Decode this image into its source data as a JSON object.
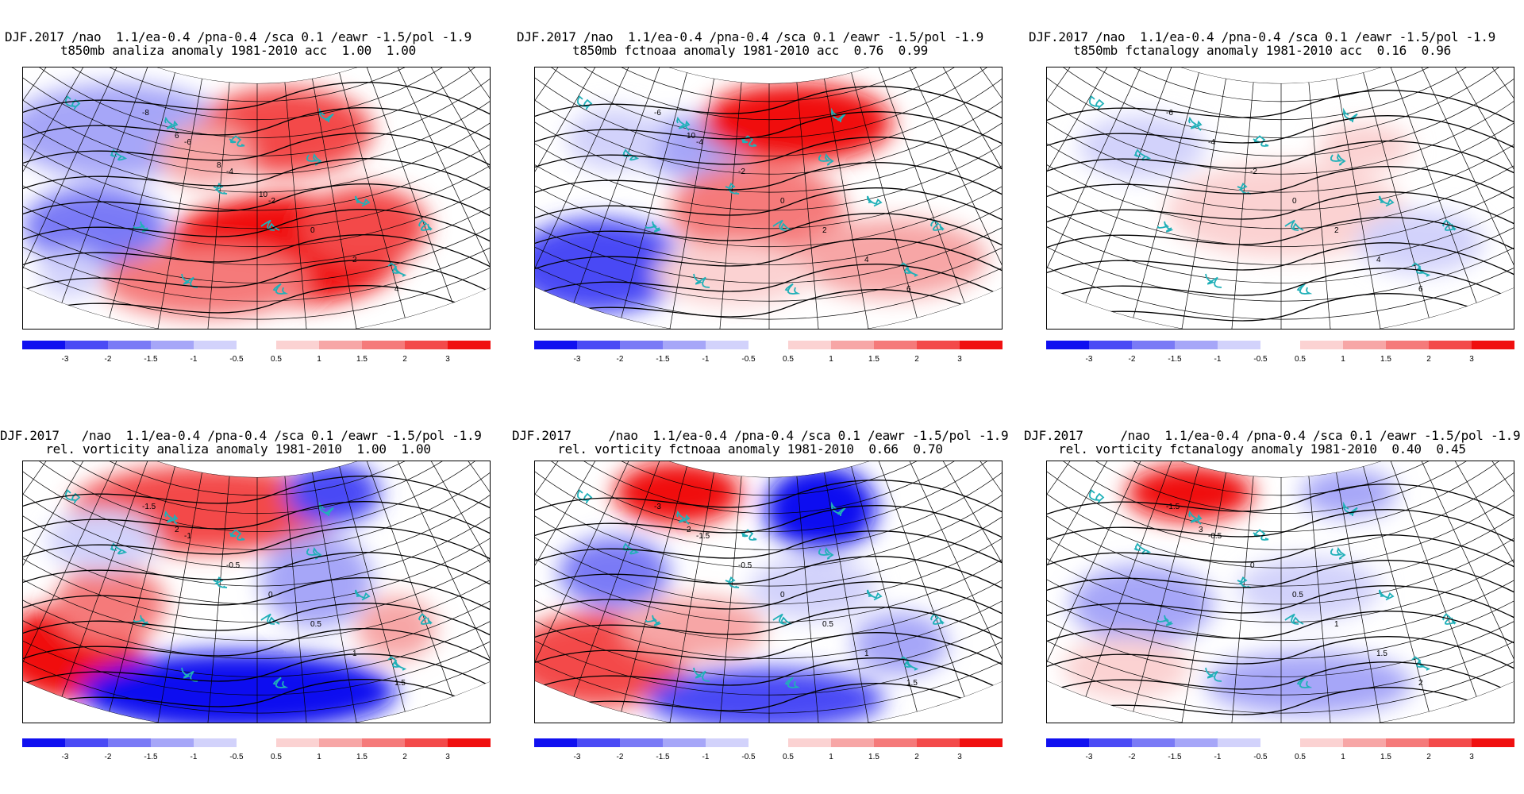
{
  "colorbar": {
    "neg_labels": [
      "-3",
      "-2",
      "-1.5",
      "-1",
      "-0.5"
    ],
    "pos_labels": [
      "0.5",
      "1",
      "1.5",
      "2",
      "3"
    ],
    "neg_colors": [
      "#1010f0",
      "#4a4af5",
      "#7a7af6",
      "#a6a6f8",
      "#d2d2fb"
    ],
    "pos_colors": [
      "#fbd2d2",
      "#f7a6a6",
      "#f57a7a",
      "#f34a4a",
      "#f01010"
    ]
  },
  "panels": [
    {
      "title1": "DJF.2017 /nao  1.1/ea-0.4 /pna-0.4 /sca 0.1 /eawr -1.5/pol -1.9",
      "title2": "t850mb analiza anomaly 1981-2010 acc  1.00  1.00",
      "contour_labels": [
        "-8",
        "-6",
        "-4",
        "-2",
        "0",
        "2",
        "4",
        "6",
        "8",
        "10"
      ]
    },
    {
      "title1": "DJF.2017 /nao  1.1/ea-0.4 /pna-0.4 /sca 0.1 /eawr -1.5/pol -1.9",
      "title2": "t850mb fctnoaa anomaly 1981-2010 acc  0.76  0.99",
      "contour_labels": [
        "-6",
        "-4",
        "-2",
        "0",
        "2",
        "4",
        "6",
        "10"
      ]
    },
    {
      "title1": "DJF.2017 /nao  1.1/ea-0.4 /pna-0.4 /sca 0.1 /eawr -1.5/pol -1.9",
      "title2": "t850mb fctanalogy anomaly 1981-2010 acc  0.16  0.96",
      "contour_labels": [
        "-6",
        "-4",
        "-2",
        "0",
        "2",
        "4",
        "6"
      ]
    },
    {
      "title1": "DJF.2017   /nao  1.1/ea-0.4 /pna-0.4 /sca 0.1 /eawr -1.5/pol -1.9",
      "title2": "rel. vorticity analiza anomaly 1981-2010  1.00  1.00",
      "contour_labels": [
        "-1.5",
        "-1",
        "-0.5",
        "0",
        "0.5",
        "1",
        "1.5",
        "2"
      ]
    },
    {
      "title1": "DJF.2017     /nao  1.1/ea-0.4 /pna-0.4 /sca 0.1 /eawr -1.5/pol -1.9",
      "title2": "rel. vorticity fctnoaa anomaly 1981-2010  0.66  0.70",
      "contour_labels": [
        "-3",
        "-1.5",
        "-0.5",
        "0",
        "0.5",
        "1",
        "1.5",
        "2"
      ]
    },
    {
      "title1": "DJF.2017     /nao  1.1/ea-0.4 /pna-0.4 /sca 0.1 /eawr -1.5/pol -1.9",
      "title2": "rel. vorticity fctanalogy anomaly 1981-2010  0.40  0.45",
      "contour_labels": [
        "-1.5",
        "-0.5",
        "0",
        "0.5",
        "1",
        "1.5",
        "2",
        "3"
      ]
    }
  ],
  "blobs": [
    [
      {
        "c": "#f01010",
        "v": 3
      },
      {
        "c": "#f34a4a",
        "v": 2
      },
      {
        "c": "#f57a7a",
        "v": 1.5
      },
      {
        "c": "#7a7af6",
        "v": -1.5
      },
      {
        "c": "#a6a6f8",
        "v": -1
      },
      {
        "c": "#d2d2fb",
        "v": -0.5
      }
    ]
  ]
}
